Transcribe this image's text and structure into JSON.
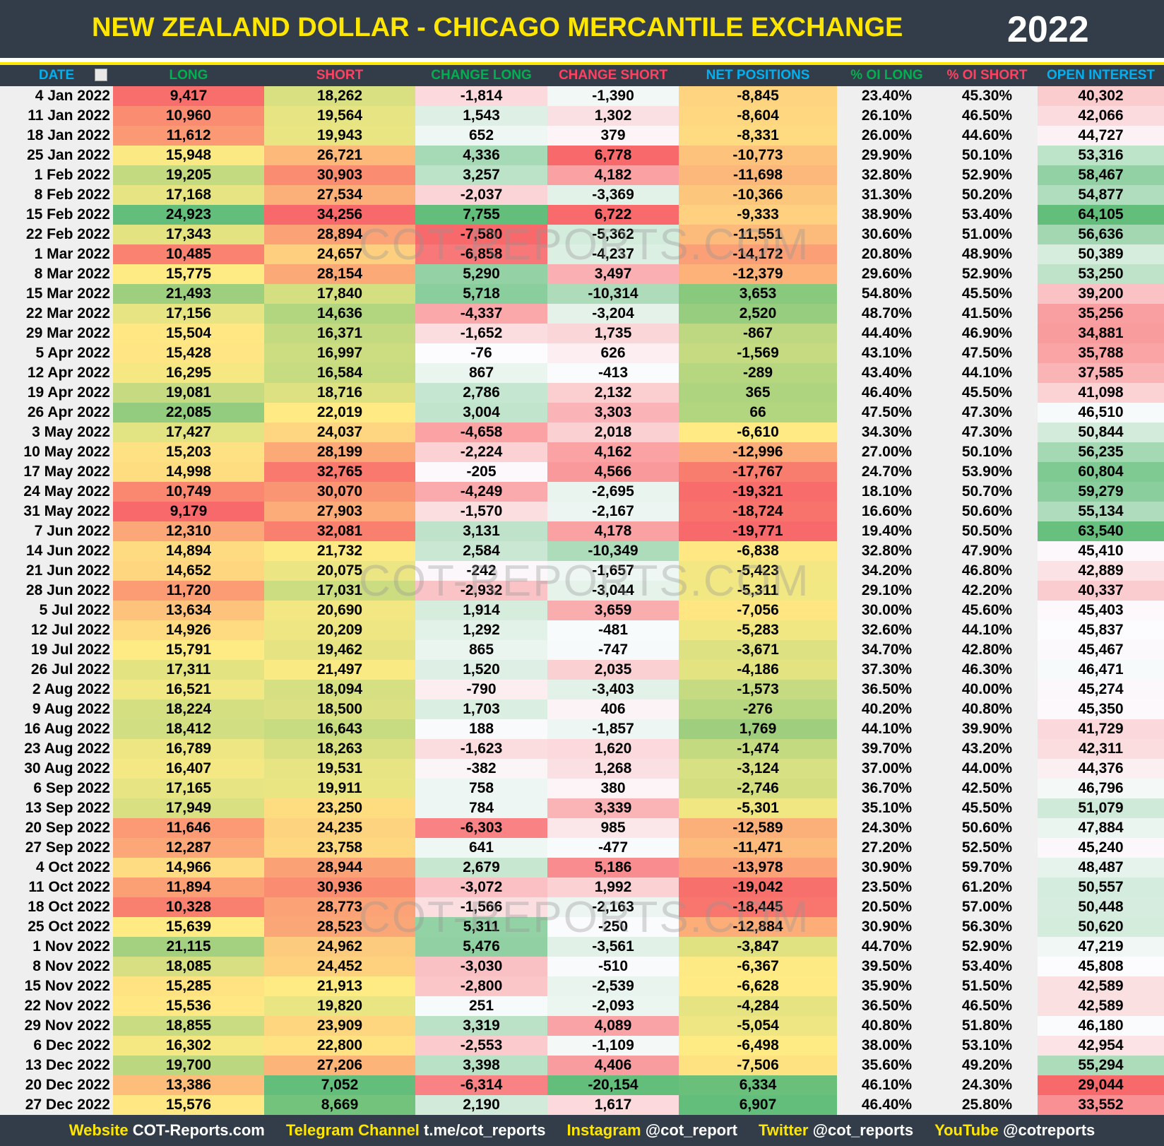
{
  "header": {
    "title": "NEW ZEALAND DOLLAR - CHICAGO MERCANTILE EXCHANGE",
    "year": "2022"
  },
  "table": {
    "columns": [
      "DATE",
      "LONG",
      "SHORT",
      "CHANGE LONG",
      "CHANGE SHORT",
      "NET POSITIONS",
      "% OI LONG",
      "% OI SHORT",
      "OPEN INTEREST"
    ],
    "rows": [
      [
        "4 Jan 2022",
        "9,417",
        "18,262",
        "-1,814",
        "-1,390",
        "-8,845",
        "23.40%",
        "45.30%",
        "40,302"
      ],
      [
        "11 Jan 2022",
        "10,960",
        "19,564",
        "1,543",
        "1,302",
        "-8,604",
        "26.10%",
        "46.50%",
        "42,066"
      ],
      [
        "18 Jan 2022",
        "11,612",
        "19,943",
        "652",
        "379",
        "-8,331",
        "26.00%",
        "44.60%",
        "44,727"
      ],
      [
        "25 Jan 2022",
        "15,948",
        "26,721",
        "4,336",
        "6,778",
        "-10,773",
        "29.90%",
        "50.10%",
        "53,316"
      ],
      [
        "1 Feb 2022",
        "19,205",
        "30,903",
        "3,257",
        "4,182",
        "-11,698",
        "32.80%",
        "52.90%",
        "58,467"
      ],
      [
        "8 Feb 2022",
        "17,168",
        "27,534",
        "-2,037",
        "-3,369",
        "-10,366",
        "31.30%",
        "50.20%",
        "54,877"
      ],
      [
        "15 Feb 2022",
        "24,923",
        "34,256",
        "7,755",
        "6,722",
        "-9,333",
        "38.90%",
        "53.40%",
        "64,105"
      ],
      [
        "22 Feb 2022",
        "17,343",
        "28,894",
        "-7,580",
        "-5,362",
        "-11,551",
        "30.60%",
        "51.00%",
        "56,636"
      ],
      [
        "1 Mar 2022",
        "10,485",
        "24,657",
        "-6,858",
        "-4,237",
        "-14,172",
        "20.80%",
        "48.90%",
        "50,389"
      ],
      [
        "8 Mar 2022",
        "15,775",
        "28,154",
        "5,290",
        "3,497",
        "-12,379",
        "29.60%",
        "52.90%",
        "53,250"
      ],
      [
        "15 Mar 2022",
        "21,493",
        "17,840",
        "5,718",
        "-10,314",
        "3,653",
        "54.80%",
        "45.50%",
        "39,200"
      ],
      [
        "22 Mar 2022",
        "17,156",
        "14,636",
        "-4,337",
        "-3,204",
        "2,520",
        "48.70%",
        "41.50%",
        "35,256"
      ],
      [
        "29 Mar 2022",
        "15,504",
        "16,371",
        "-1,652",
        "1,735",
        "-867",
        "44.40%",
        "46.90%",
        "34,881"
      ],
      [
        "5 Apr 2022",
        "15,428",
        "16,997",
        "-76",
        "626",
        "-1,569",
        "43.10%",
        "47.50%",
        "35,788"
      ],
      [
        "12 Apr 2022",
        "16,295",
        "16,584",
        "867",
        "-413",
        "-289",
        "43.40%",
        "44.10%",
        "37,585"
      ],
      [
        "19 Apr 2022",
        "19,081",
        "18,716",
        "2,786",
        "2,132",
        "365",
        "46.40%",
        "45.50%",
        "41,098"
      ],
      [
        "26 Apr 2022",
        "22,085",
        "22,019",
        "3,004",
        "3,303",
        "66",
        "47.50%",
        "47.30%",
        "46,510"
      ],
      [
        "3 May 2022",
        "17,427",
        "24,037",
        "-4,658",
        "2,018",
        "-6,610",
        "34.30%",
        "47.30%",
        "50,844"
      ],
      [
        "10 May 2022",
        "15,203",
        "28,199",
        "-2,224",
        "4,162",
        "-12,996",
        "27.00%",
        "50.10%",
        "56,235"
      ],
      [
        "17 May 2022",
        "14,998",
        "32,765",
        "-205",
        "4,566",
        "-17,767",
        "24.70%",
        "53.90%",
        "60,804"
      ],
      [
        "24 May 2022",
        "10,749",
        "30,070",
        "-4,249",
        "-2,695",
        "-19,321",
        "18.10%",
        "50.70%",
        "59,279"
      ],
      [
        "31 May 2022",
        "9,179",
        "27,903",
        "-1,570",
        "-2,167",
        "-18,724",
        "16.60%",
        "50.60%",
        "55,134"
      ],
      [
        "7 Jun 2022",
        "12,310",
        "32,081",
        "3,131",
        "4,178",
        "-19,771",
        "19.40%",
        "50.50%",
        "63,540"
      ],
      [
        "14 Jun 2022",
        "14,894",
        "21,732",
        "2,584",
        "-10,349",
        "-6,838",
        "32.80%",
        "47.90%",
        "45,410"
      ],
      [
        "21 Jun 2022",
        "14,652",
        "20,075",
        "-242",
        "-1,657",
        "-5,423",
        "34.20%",
        "46.80%",
        "42,889"
      ],
      [
        "28 Jun 2022",
        "11,720",
        "17,031",
        "-2,932",
        "-3,044",
        "-5,311",
        "29.10%",
        "42.20%",
        "40,337"
      ],
      [
        "5 Jul 2022",
        "13,634",
        "20,690",
        "1,914",
        "3,659",
        "-7,056",
        "30.00%",
        "45.60%",
        "45,403"
      ],
      [
        "12 Jul 2022",
        "14,926",
        "20,209",
        "1,292",
        "-481",
        "-5,283",
        "32.60%",
        "44.10%",
        "45,837"
      ],
      [
        "19 Jul 2022",
        "15,791",
        "19,462",
        "865",
        "-747",
        "-3,671",
        "34.70%",
        "42.80%",
        "45,467"
      ],
      [
        "26 Jul 2022",
        "17,311",
        "21,497",
        "1,520",
        "2,035",
        "-4,186",
        "37.30%",
        "46.30%",
        "46,471"
      ],
      [
        "2 Aug 2022",
        "16,521",
        "18,094",
        "-790",
        "-3,403",
        "-1,573",
        "36.50%",
        "40.00%",
        "45,274"
      ],
      [
        "9 Aug 2022",
        "18,224",
        "18,500",
        "1,703",
        "406",
        "-276",
        "40.20%",
        "40.80%",
        "45,350"
      ],
      [
        "16 Aug 2022",
        "18,412",
        "16,643",
        "188",
        "-1,857",
        "1,769",
        "44.10%",
        "39.90%",
        "41,729"
      ],
      [
        "23 Aug 2022",
        "16,789",
        "18,263",
        "-1,623",
        "1,620",
        "-1,474",
        "39.70%",
        "43.20%",
        "42,311"
      ],
      [
        "30 Aug 2022",
        "16,407",
        "19,531",
        "-382",
        "1,268",
        "-3,124",
        "37.00%",
        "44.00%",
        "44,376"
      ],
      [
        "6 Sep 2022",
        "17,165",
        "19,911",
        "758",
        "380",
        "-2,746",
        "36.70%",
        "42.50%",
        "46,796"
      ],
      [
        "13 Sep 2022",
        "17,949",
        "23,250",
        "784",
        "3,339",
        "-5,301",
        "35.10%",
        "45.50%",
        "51,079"
      ],
      [
        "20 Sep 2022",
        "11,646",
        "24,235",
        "-6,303",
        "985",
        "-12,589",
        "24.30%",
        "50.60%",
        "47,884"
      ],
      [
        "27 Sep 2022",
        "12,287",
        "23,758",
        "641",
        "-477",
        "-11,471",
        "27.20%",
        "52.50%",
        "45,240"
      ],
      [
        "4 Oct 2022",
        "14,966",
        "28,944",
        "2,679",
        "5,186",
        "-13,978",
        "30.90%",
        "59.70%",
        "48,487"
      ],
      [
        "11 Oct 2022",
        "11,894",
        "30,936",
        "-3,072",
        "1,992",
        "-19,042",
        "23.50%",
        "61.20%",
        "50,557"
      ],
      [
        "18 Oct 2022",
        "10,328",
        "28,773",
        "-1,566",
        "-2,163",
        "-18,445",
        "20.50%",
        "57.00%",
        "50,448"
      ],
      [
        "25 Oct 2022",
        "15,639",
        "28,523",
        "5,311",
        "-250",
        "-12,884",
        "30.90%",
        "56.30%",
        "50,620"
      ],
      [
        "1 Nov 2022",
        "21,115",
        "24,962",
        "5,476",
        "-3,561",
        "-3,847",
        "44.70%",
        "52.90%",
        "47,219"
      ],
      [
        "8 Nov 2022",
        "18,085",
        "24,452",
        "-3,030",
        "-510",
        "-6,367",
        "39.50%",
        "53.40%",
        "45,808"
      ],
      [
        "15 Nov 2022",
        "15,285",
        "21,913",
        "-2,800",
        "-2,539",
        "-6,628",
        "35.90%",
        "51.50%",
        "42,589"
      ],
      [
        "22 Nov 2022",
        "15,536",
        "19,820",
        "251",
        "-2,093",
        "-4,284",
        "36.50%",
        "46.50%",
        "42,589"
      ],
      [
        "29 Nov 2022",
        "18,855",
        "23,909",
        "3,319",
        "4,089",
        "-5,054",
        "40.80%",
        "51.80%",
        "46,180"
      ],
      [
        "6 Dec 2022",
        "16,302",
        "22,800",
        "-2,553",
        "-1,109",
        "-6,498",
        "38.00%",
        "53.10%",
        "42,954"
      ],
      [
        "13 Dec 2022",
        "19,700",
        "27,206",
        "3,398",
        "4,406",
        "-7,506",
        "35.60%",
        "49.20%",
        "55,294"
      ],
      [
        "20 Dec 2022",
        "13,386",
        "7,052",
        "-6,314",
        "-20,154",
        "6,334",
        "46.10%",
        "24.30%",
        "29,044"
      ],
      [
        "27 Dec 2022",
        "15,576",
        "8,669",
        "2,190",
        "1,617",
        "6,907",
        "46.40%",
        "25.80%",
        "33,552"
      ]
    ]
  },
  "watermark": "COT-REPORTS.COM",
  "footer": [
    {
      "label": "Website",
      "value": "COT-Reports.com"
    },
    {
      "label": "Telegram Channel",
      "value": "t.me/cot_reports"
    },
    {
      "label": "Instagram",
      "value": "@cot_report"
    },
    {
      "label": "Twitter",
      "value": "@cot_reports"
    },
    {
      "label": "YouTube",
      "value": "@cotreports"
    }
  ]
}
